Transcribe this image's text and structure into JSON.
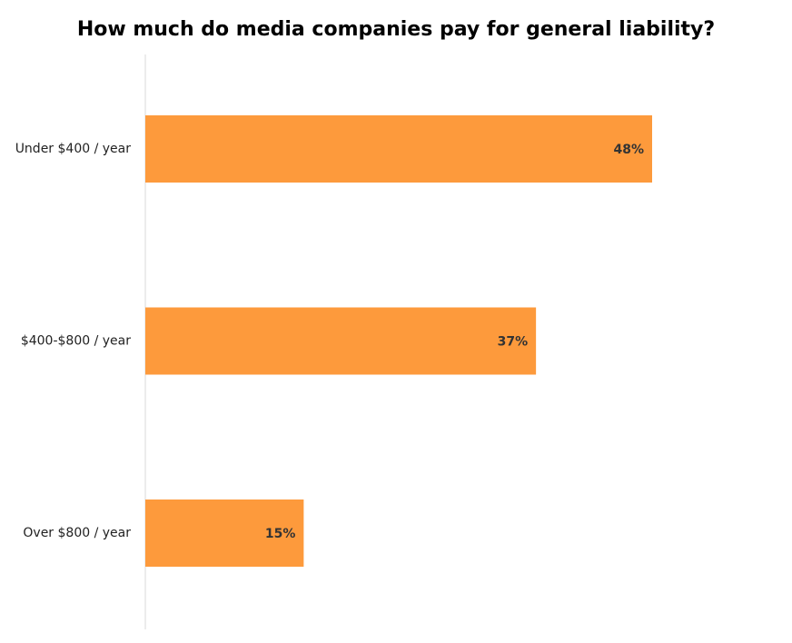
{
  "chart_data": {
    "type": "bar",
    "orientation": "horizontal",
    "title": "How much do media companies pay for general liability?",
    "categories": [
      "Under $400 / year",
      "$400-$800 / year",
      "Over $800 / year"
    ],
    "values": [
      48,
      37,
      15
    ],
    "value_labels": [
      "48%",
      "37%",
      "15%"
    ],
    "xlabel": "",
    "ylabel": "",
    "xlim": [
      0,
      65
    ],
    "grid": false,
    "legend": "none",
    "colors": {
      "bar": "#FD9A3C",
      "axis": "#d9d9d9",
      "title": "#000000",
      "value_label": "#333333"
    }
  }
}
